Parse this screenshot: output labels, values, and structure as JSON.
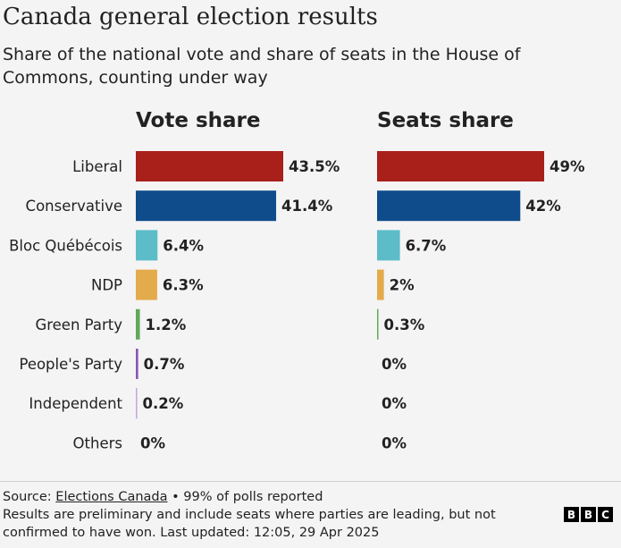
{
  "title": "Canada general election results",
  "subtitle": "Share of the national vote and share of seats in the House of Commons, counting under way",
  "chart_data": {
    "type": "bar",
    "orientation": "horizontal",
    "categories": [
      "Liberal",
      "Conservative",
      "Bloc Québécois",
      "NDP",
      "Green Party",
      "People's Party",
      "Independent",
      "Others"
    ],
    "colors": [
      "#a91f1a",
      "#0f4c8b",
      "#5cbcc8",
      "#e4ab4c",
      "#62a85b",
      "#8b57b3",
      "#c4a6d6",
      "#999999"
    ],
    "series": [
      {
        "name": "Vote share",
        "values": [
          43.5,
          41.4,
          6.4,
          6.3,
          1.2,
          0.7,
          0.2,
          0
        ],
        "labels": [
          "43.5%",
          "41.4%",
          "6.4%",
          "6.3%",
          "1.2%",
          "0.7%",
          "0.2%",
          "0%"
        ]
      },
      {
        "name": "Seats share",
        "values": [
          49,
          42,
          6.7,
          2,
          0.3,
          0,
          0,
          0
        ],
        "labels": [
          "49%",
          "42%",
          "6.7%",
          "2%",
          "0.3%",
          "0%",
          "0%",
          "0%"
        ]
      }
    ]
  },
  "footer": {
    "source_prefix": "Source: ",
    "source_link": "Elections Canada",
    "source_suffix": " • 99% of polls reported",
    "note": "Results are preliminary and include seats where parties are leading, but not confirmed to have won. Last updated: 12:05, 29 Apr 2025",
    "logo": [
      "B",
      "B",
      "C"
    ]
  }
}
